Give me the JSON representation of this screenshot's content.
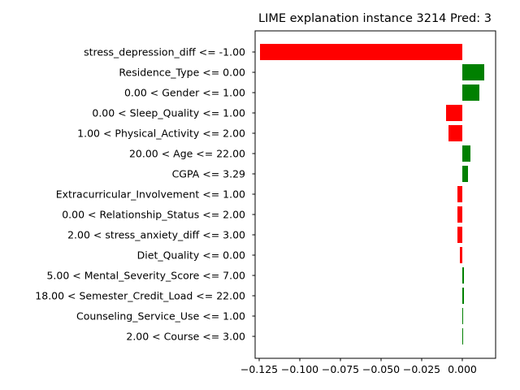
{
  "chart_data": {
    "type": "bar",
    "orientation": "horizontal",
    "title": "LIME explanation instance 3214 Pred: 3",
    "xlabel": "",
    "ylabel": "",
    "xlim": [
      -0.1275,
      0.0205
    ],
    "positive_color": "#008000",
    "negative_color": "#ff0000",
    "x_ticks": [
      {
        "value": -0.125,
        "label": "−0.125"
      },
      {
        "value": -0.1,
        "label": "−0.100"
      },
      {
        "value": -0.075,
        "label": "−0.075"
      },
      {
        "value": -0.05,
        "label": "−0.050"
      },
      {
        "value": -0.025,
        "label": "−0.025"
      },
      {
        "value": 0.0,
        "label": "0.000"
      }
    ],
    "categories": [
      "stress_depression_diff <= -1.00",
      "Residence_Type <= 0.00",
      "0.00 < Gender <= 1.00",
      "0.00 < Sleep_Quality <= 1.00",
      "1.00 < Physical_Activity <= 2.00",
      "20.00 < Age <= 22.00",
      "CGPA <= 3.29",
      "Extracurricular_Involvement <= 1.00",
      "0.00 < Relationship_Status <= 2.00",
      "2.00 < stress_anxiety_diff <= 3.00",
      "Diet_Quality <= 0.00",
      "5.00 < Mental_Severity_Score <= 7.00",
      "18.00 < Semester_Credit_Load <= 22.00",
      "Counseling_Service_Use <= 1.00",
      "2.00 < Course <= 3.00"
    ],
    "values": [
      -0.1245,
      0.0135,
      0.0105,
      -0.01,
      -0.0085,
      0.005,
      0.0035,
      -0.003,
      -0.003,
      -0.003,
      -0.0015,
      0.001,
      0.001,
      0.0005,
      0.0005
    ]
  }
}
